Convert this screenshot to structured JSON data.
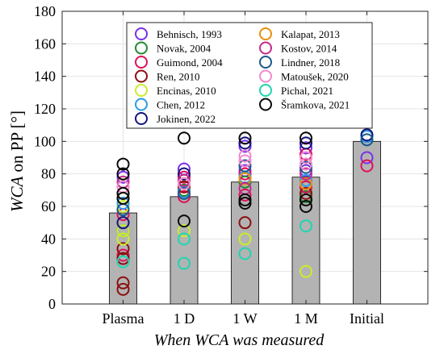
{
  "chart_data": {
    "type": "bar",
    "xlabel": "When WCA was measured",
    "ylabel_italic": "WCA",
    "ylabel_rest": " on PP [°]",
    "ylim": [
      0,
      180
    ],
    "yticks": [
      0,
      20,
      40,
      60,
      80,
      100,
      120,
      140,
      160,
      180
    ],
    "grid": true,
    "legend_position": "top-center",
    "categories": [
      "Plasma",
      "1 D",
      "1 W",
      "1 M",
      "Initial"
    ],
    "bar_values": [
      56,
      66,
      75,
      78,
      100
    ],
    "bar_color": "#b3b3b3",
    "series": [
      {
        "name": "Behnisch, 1993",
        "color": "#7b2fe8",
        "points": [
          [
            "Plasma",
            78
          ],
          [
            "Plasma",
            58
          ],
          [
            "1 D",
            83
          ],
          [
            "1 W",
            97
          ],
          [
            "1 W",
            82
          ],
          [
            "1 M",
            96
          ],
          [
            "1 M",
            82
          ],
          [
            "Initial",
            90
          ]
        ]
      },
      {
        "name": "Novak, 2004",
        "color": "#1f8a2e",
        "points": [
          [
            "Plasma",
            65
          ],
          [
            "Plasma",
            45
          ],
          [
            "1 D",
            70
          ],
          [
            "1 W",
            75
          ],
          [
            "1 M",
            72
          ],
          [
            "1 M",
            66
          ]
        ]
      },
      {
        "name": "Guimond, 2004",
        "color": "#e0105a",
        "points": [
          [
            "Plasma",
            68
          ],
          [
            "Plasma",
            55
          ],
          [
            "Plasma",
            30
          ],
          [
            "1 D",
            78
          ],
          [
            "1 D",
            66
          ],
          [
            "1 W",
            80
          ],
          [
            "1 W",
            67
          ],
          [
            "1 M",
            92
          ],
          [
            "1 M",
            72
          ],
          [
            "Initial",
            85
          ]
        ]
      },
      {
        "name": "Ren, 2010",
        "color": "#8b1010",
        "points": [
          [
            "Plasma",
            34
          ],
          [
            "Plasma",
            28
          ],
          [
            "Plasma",
            13
          ],
          [
            "Plasma",
            9
          ],
          [
            "1 D",
            72
          ],
          [
            "1 W",
            50
          ],
          [
            "1 M",
            68
          ]
        ]
      },
      {
        "name": "Encinas, 2010",
        "color": "#c8ee2a",
        "points": [
          [
            "Plasma",
            60
          ],
          [
            "Plasma",
            45
          ],
          [
            "Plasma",
            40
          ],
          [
            "1 D",
            45
          ],
          [
            "1 W",
            40
          ],
          [
            "1 M",
            20
          ]
        ]
      },
      {
        "name": "Chen, 2012",
        "color": "#2a9ae8",
        "points": [
          [
            "Plasma",
            62
          ],
          [
            "1 D",
            69
          ],
          [
            "1 W",
            78
          ],
          [
            "1 M",
            76
          ],
          [
            "Initial",
            103
          ]
        ]
      },
      {
        "name": "Jokinen, 2022",
        "color": "#14147a",
        "points": [
          [
            "Plasma",
            50
          ],
          [
            "1 D",
            80
          ],
          [
            "1 W",
            99
          ],
          [
            "1 M",
            99
          ],
          [
            "Initial",
            104
          ]
        ]
      },
      {
        "name": "Kalapat, 2013",
        "color": "#e8900a",
        "points": [
          [
            "Plasma",
            72
          ],
          [
            "1 D",
            74
          ],
          [
            "1 W",
            77
          ],
          [
            "1 M",
            74
          ]
        ]
      },
      {
        "name": "Kostov, 2014",
        "color": "#c42a8a",
        "points": [
          [
            "Plasma",
            75
          ],
          [
            "1 D",
            76
          ],
          [
            "1 W",
            71
          ],
          [
            "1 M",
            80
          ]
        ]
      },
      {
        "name": "Lindner, 2018",
        "color": "#1a5a8a",
        "points": [
          [
            "Plasma",
            58
          ],
          [
            "1 D",
            68
          ],
          [
            "1 W",
            85
          ],
          [
            "1 M",
            84
          ],
          [
            "Initial",
            101
          ]
        ]
      },
      {
        "name": "Matoušek, 2020",
        "color": "#f08ad0",
        "points": [
          [
            "Plasma",
            72
          ],
          [
            "1 D",
            74
          ],
          [
            "1 W",
            91
          ],
          [
            "1 W",
            88
          ],
          [
            "1 M",
            90
          ],
          [
            "1 M",
            86
          ]
        ]
      },
      {
        "name": "Pichal, 2021",
        "color": "#1ed6b0",
        "points": [
          [
            "Plasma",
            26
          ],
          [
            "1 D",
            40
          ],
          [
            "1 D",
            25
          ],
          [
            "1 W",
            31
          ],
          [
            "1 M",
            48
          ]
        ]
      },
      {
        "name": "Šramkova, 2021",
        "color": "#0a0a0a",
        "points": [
          [
            "Plasma",
            86
          ],
          [
            "Plasma",
            80
          ],
          [
            "Plasma",
            68
          ],
          [
            "Plasma",
            65
          ],
          [
            "1 D",
            102
          ],
          [
            "1 D",
            51
          ],
          [
            "1 W",
            102
          ],
          [
            "1 W",
            64
          ],
          [
            "1 W",
            62
          ],
          [
            "1 M",
            102
          ],
          [
            "1 M",
            64
          ],
          [
            "1 M",
            60
          ]
        ]
      }
    ]
  }
}
